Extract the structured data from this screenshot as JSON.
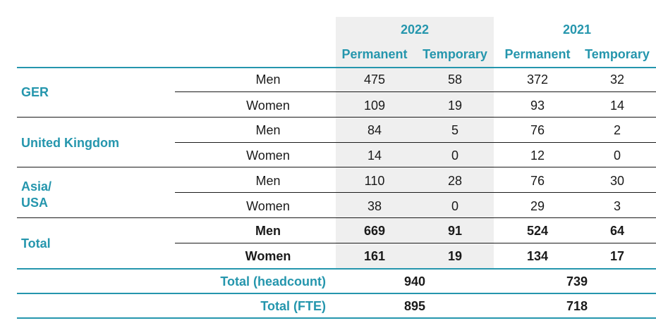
{
  "header": {
    "year_2022": "2022",
    "year_2021": "2021",
    "permanent": "Permanent",
    "temporary": "Temporary"
  },
  "groups": [
    {
      "name_lines": [
        "GER"
      ],
      "rows": [
        {
          "gender": "Men",
          "p22": "475",
          "t22": "58",
          "p21": "372",
          "t21": "32"
        },
        {
          "gender": "Women",
          "p22": "109",
          "t22": "19",
          "p21": "93",
          "t21": "14"
        }
      ]
    },
    {
      "name_lines": [
        "United Kingdom"
      ],
      "rows": [
        {
          "gender": "Men",
          "p22": "84",
          "t22": "5",
          "p21": "76",
          "t21": "2"
        },
        {
          "gender": "Women",
          "p22": "14",
          "t22": "0",
          "p21": "12",
          "t21": "0"
        }
      ]
    },
    {
      "name_lines": [
        "Asia/",
        "USA"
      ],
      "rows": [
        {
          "gender": "Men",
          "p22": "110",
          "t22": "28",
          "p21": "76",
          "t21": "30"
        },
        {
          "gender": "Women",
          "p22": "38",
          "t22": "0",
          "p21": "29",
          "t21": "3"
        }
      ]
    },
    {
      "name_lines": [
        "Total"
      ],
      "rows": [
        {
          "gender": "Men",
          "p22": "669",
          "t22": "91",
          "p21": "524",
          "t21": "64"
        },
        {
          "gender": "Women",
          "p22": "161",
          "t22": "19",
          "p21": "134",
          "t21": "17"
        }
      ]
    }
  ],
  "totals": {
    "headcount": {
      "label": "Total (headcount)",
      "v22": "940",
      "v21": "739"
    },
    "fte": {
      "label": "Total (FTE)",
      "v22": "895",
      "v21": "718"
    }
  },
  "colors": {
    "accent": "#2596ad",
    "shade": "#efefef",
    "text": "#1a1a1a"
  }
}
